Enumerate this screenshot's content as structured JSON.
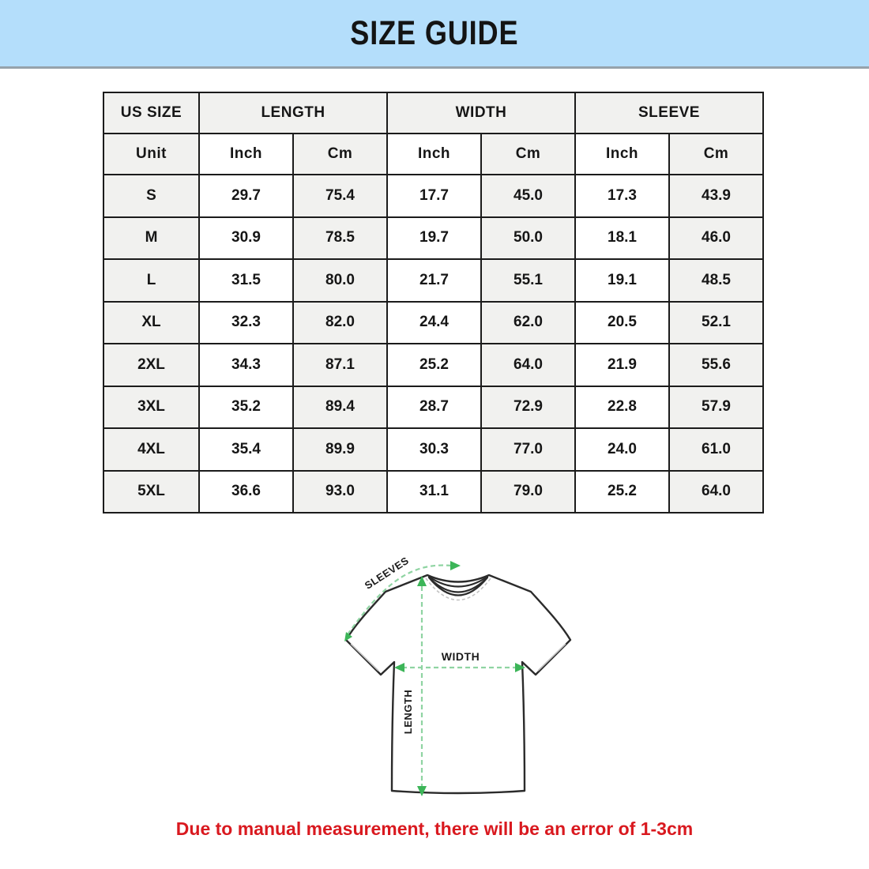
{
  "banner": {
    "title": "SIZE GUIDE",
    "bg_color": "#b4defb"
  },
  "table": {
    "col_groups": [
      "US SIZE",
      "LENGTH",
      "WIDTH",
      "SLEEVE"
    ],
    "unit_row": [
      "Unit",
      "Inch",
      "Cm",
      "Inch",
      "Cm",
      "Inch",
      "Cm"
    ],
    "rows": [
      {
        "size": "S",
        "values": [
          "29.7",
          "75.4",
          "17.7",
          "45.0",
          "17.3",
          "43.9"
        ]
      },
      {
        "size": "M",
        "values": [
          "30.9",
          "78.5",
          "19.7",
          "50.0",
          "18.1",
          "46.0"
        ]
      },
      {
        "size": "L",
        "values": [
          "31.5",
          "80.0",
          "21.7",
          "55.1",
          "19.1",
          "48.5"
        ]
      },
      {
        "size": "XL",
        "values": [
          "32.3",
          "82.0",
          "24.4",
          "62.0",
          "20.5",
          "52.1"
        ]
      },
      {
        "size": "2XL",
        "values": [
          "34.3",
          "87.1",
          "25.2",
          "64.0",
          "21.9",
          "55.6"
        ]
      },
      {
        "size": "3XL",
        "values": [
          "35.2",
          "89.4",
          "28.7",
          "72.9",
          "22.8",
          "57.9"
        ]
      },
      {
        "size": "4XL",
        "values": [
          "35.4",
          "89.9",
          "30.3",
          "77.0",
          "24.0",
          "61.0"
        ]
      },
      {
        "size": "5XL",
        "values": [
          "36.6",
          "93.0",
          "31.1",
          "79.0",
          "25.2",
          "64.0"
        ]
      }
    ],
    "shade_color": "#f1f1ef",
    "border_color": "#1b1b1b"
  },
  "diagram": {
    "labels": {
      "sleeves": "SLEEVES",
      "width": "WIDTH",
      "length": "LENGTH"
    },
    "dash_color": "#8fd4a2",
    "arrow_color": "#3cb558",
    "outline_color": "#2b2b2b"
  },
  "note": {
    "text": "Due to manual measurement, there will be an error of 1-3cm",
    "color": "#d9191f"
  },
  "chart_data": {
    "type": "table",
    "title": "SIZE GUIDE",
    "columns": [
      "US SIZE",
      "LENGTH Inch",
      "LENGTH Cm",
      "WIDTH Inch",
      "WIDTH Cm",
      "SLEEVE Inch",
      "SLEEVE Cm"
    ],
    "rows": [
      [
        "S",
        29.7,
        75.4,
        17.7,
        45.0,
        17.3,
        43.9
      ],
      [
        "M",
        30.9,
        78.5,
        19.7,
        50.0,
        18.1,
        46.0
      ],
      [
        "L",
        31.5,
        80.0,
        21.7,
        55.1,
        19.1,
        48.5
      ],
      [
        "XL",
        32.3,
        82.0,
        24.4,
        62.0,
        20.5,
        52.1
      ],
      [
        "2XL",
        34.3,
        87.1,
        25.2,
        64.0,
        21.9,
        55.6
      ],
      [
        "3XL",
        35.2,
        89.4,
        28.7,
        72.9,
        22.8,
        57.9
      ],
      [
        "4XL",
        35.4,
        89.9,
        30.3,
        77.0,
        24.0,
        61.0
      ],
      [
        "5XL",
        36.6,
        93.0,
        31.1,
        79.0,
        25.2,
        64.0
      ]
    ],
    "footnote": "Due to manual measurement, there will be an error of 1-3cm"
  }
}
